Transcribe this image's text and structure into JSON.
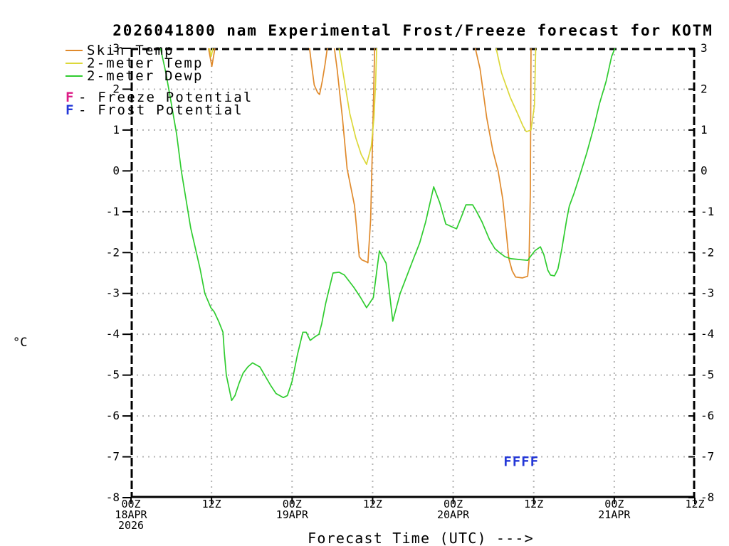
{
  "chart_data": {
    "type": "line",
    "title": "2026041800 nam Experimental Frost/Freeze forecast for KOTM",
    "xlabel": "Forecast Time (UTC) --->",
    "ylabel": "°C",
    "x_axis": {
      "unit": "forecast hour from 00Z 18APR 2026",
      "range": [
        0,
        84
      ],
      "gridline_every_hours": 12,
      "ticks": [
        {
          "hour": 0,
          "labels": [
            "00Z",
            "18APR",
            "2026"
          ]
        },
        {
          "hour": 12,
          "labels": [
            "12Z"
          ]
        },
        {
          "hour": 24,
          "labels": [
            "00Z",
            "19APR"
          ]
        },
        {
          "hour": 36,
          "labels": [
            "12Z"
          ]
        },
        {
          "hour": 48,
          "labels": [
            "00Z",
            "20APR"
          ]
        },
        {
          "hour": 60,
          "labels": [
            "12Z"
          ]
        },
        {
          "hour": 72,
          "labels": [
            "00Z",
            "21APR"
          ]
        },
        {
          "hour": 84,
          "labels": [
            "12Z"
          ]
        }
      ]
    },
    "y_axis": {
      "range": [
        -8,
        3
      ],
      "ticks": [
        3,
        2,
        1,
        0,
        -1,
        -2,
        -3,
        -4,
        -5,
        -6,
        -7,
        -8
      ]
    },
    "series": [
      {
        "name": "Skin Temp",
        "color": "#E08A2C",
        "segments": [
          [
            [
              11.55,
              3.0
            ],
            [
              12.05,
              2.56
            ],
            [
              12.5,
              3.0
            ]
          ],
          [
            [
              26.6,
              3.0
            ],
            [
              26.9,
              2.6
            ],
            [
              27.3,
              2.1
            ],
            [
              27.8,
              1.92
            ],
            [
              28.1,
              1.87
            ],
            [
              28.5,
              2.2
            ],
            [
              28.9,
              2.6
            ],
            [
              29.2,
              2.95
            ],
            [
              29.3,
              3.0
            ]
          ],
          [
            [
              30.3,
              3.0
            ],
            [
              30.7,
              2.5
            ],
            [
              31.1,
              1.9
            ],
            [
              31.5,
              1.3
            ],
            [
              32.2,
              0.05
            ],
            [
              33.3,
              -0.85
            ],
            [
              34.0,
              -2.1
            ],
            [
              34.4,
              -2.18
            ],
            [
              35.0,
              -2.22
            ],
            [
              35.3,
              -2.25
            ],
            [
              35.7,
              -1.2
            ],
            [
              36.0,
              0.8
            ],
            [
              36.3,
              3.0
            ]
          ],
          [
            [
              51.3,
              3.0
            ],
            [
              52.0,
              2.5
            ],
            [
              52.5,
              1.9
            ],
            [
              53.0,
              1.3
            ],
            [
              53.9,
              0.5
            ],
            [
              54.7,
              0.0
            ],
            [
              55.4,
              -0.7
            ],
            [
              55.9,
              -1.5
            ],
            [
              56.3,
              -2.15
            ],
            [
              56.8,
              -2.45
            ],
            [
              57.3,
              -2.6
            ],
            [
              58.3,
              -2.62
            ],
            [
              59.1,
              -2.58
            ],
            [
              59.3,
              -2.2
            ],
            [
              59.5,
              -0.5
            ],
            [
              59.6,
              3.0
            ]
          ]
        ]
      },
      {
        "name": "2-meter Temp",
        "color": "#DCD83A",
        "segments": [
          [
            [
              11.7,
              3.0
            ],
            [
              11.95,
              2.8
            ],
            [
              12.2,
              3.0
            ]
          ],
          [
            [
              31.0,
              3.0
            ],
            [
              31.8,
              2.2
            ],
            [
              32.6,
              1.4
            ],
            [
              33.5,
              0.8
            ],
            [
              34.3,
              0.4
            ],
            [
              35.1,
              0.16
            ],
            [
              35.8,
              0.6
            ],
            [
              36.2,
              1.3
            ],
            [
              36.45,
              2.2
            ],
            [
              36.6,
              3.0
            ]
          ],
          [
            [
              54.4,
              3.0
            ],
            [
              55.2,
              2.4
            ],
            [
              56.5,
              1.8
            ],
            [
              57.6,
              1.4
            ],
            [
              58.4,
              1.1
            ],
            [
              58.9,
              0.96
            ],
            [
              59.6,
              1.0
            ],
            [
              60.1,
              1.6
            ],
            [
              60.3,
              3.0
            ]
          ]
        ]
      },
      {
        "name": "2-meter Dewp",
        "color": "#2FCC2F",
        "segments": [
          [
            [
              4.4,
              3.0
            ],
            [
              5.2,
              2.4
            ],
            [
              5.9,
              1.75
            ],
            [
              6.8,
              0.9
            ],
            [
              7.5,
              0.0
            ],
            [
              8.2,
              -0.7
            ],
            [
              8.9,
              -1.4
            ],
            [
              9.6,
              -1.9
            ],
            [
              10.3,
              -2.4
            ],
            [
              11.0,
              -3.0
            ],
            [
              11.9,
              -3.35
            ],
            [
              12.4,
              -3.45
            ],
            [
              13.1,
              -3.7
            ],
            [
              13.7,
              -3.95
            ],
            [
              13.9,
              -4.45
            ],
            [
              14.2,
              -5.0
            ],
            [
              15.0,
              -5.62
            ],
            [
              15.5,
              -5.5
            ],
            [
              16.1,
              -5.2
            ],
            [
              16.7,
              -4.95
            ],
            [
              17.4,
              -4.8
            ],
            [
              18.1,
              -4.7
            ],
            [
              19.2,
              -4.8
            ],
            [
              20.8,
              -5.25
            ],
            [
              21.6,
              -5.45
            ],
            [
              22.7,
              -5.55
            ],
            [
              23.3,
              -5.5
            ],
            [
              24.0,
              -5.15
            ],
            [
              24.8,
              -4.5
            ],
            [
              25.6,
              -3.95
            ],
            [
              26.1,
              -3.95
            ],
            [
              26.7,
              -4.15
            ],
            [
              27.5,
              -4.05
            ],
            [
              28.0,
              -4.0
            ],
            [
              28.4,
              -3.75
            ],
            [
              29.0,
              -3.25
            ],
            [
              30.1,
              -2.5
            ],
            [
              31.0,
              -2.48
            ],
            [
              31.8,
              -2.55
            ],
            [
              33.2,
              -2.85
            ],
            [
              34.2,
              -3.1
            ],
            [
              35.1,
              -3.35
            ],
            [
              36.1,
              -3.1
            ],
            [
              37.0,
              -1.96
            ],
            [
              38.0,
              -2.26
            ],
            [
              39.0,
              -3.68
            ],
            [
              40.1,
              -3.0
            ],
            [
              42.2,
              -2.1
            ],
            [
              43.0,
              -1.77
            ],
            [
              43.9,
              -1.25
            ],
            [
              45.1,
              -0.39
            ],
            [
              46.0,
              -0.78
            ],
            [
              46.9,
              -1.3
            ],
            [
              48.5,
              -1.42
            ],
            [
              49.4,
              -1.05
            ],
            [
              49.9,
              -0.83
            ],
            [
              50.9,
              -0.83
            ],
            [
              51.5,
              -1.0
            ],
            [
              52.3,
              -1.25
            ],
            [
              53.4,
              -1.68
            ],
            [
              54.2,
              -1.9
            ],
            [
              54.9,
              -2.0
            ],
            [
              55.7,
              -2.1
            ],
            [
              56.6,
              -2.15
            ],
            [
              57.8,
              -2.17
            ],
            [
              59.1,
              -2.19
            ],
            [
              59.5,
              -2.1
            ],
            [
              60.2,
              -1.95
            ],
            [
              61.0,
              -1.86
            ],
            [
              61.5,
              -2.05
            ],
            [
              62.1,
              -2.43
            ],
            [
              62.5,
              -2.55
            ],
            [
              63.1,
              -2.57
            ],
            [
              63.6,
              -2.4
            ],
            [
              64.2,
              -1.9
            ],
            [
              64.9,
              -1.2
            ],
            [
              65.3,
              -0.86
            ],
            [
              66.0,
              -0.55
            ],
            [
              66.6,
              -0.25
            ],
            [
              67.9,
              0.44
            ],
            [
              69.0,
              1.1
            ],
            [
              69.8,
              1.65
            ],
            [
              70.8,
              2.2
            ],
            [
              71.6,
              2.8
            ],
            [
              72.1,
              3.0
            ]
          ]
        ]
      }
    ],
    "markers": [
      {
        "text": "FFFF",
        "meaning": "Frost Potential",
        "color": "#2438D8",
        "hour": 55.5,
        "value": -7.1
      }
    ],
    "legend": {
      "line_items": [
        {
          "label": "Skin Temp",
          "color": "#E08A2C"
        },
        {
          "label": "2-meter Temp",
          "color": "#DCD83A"
        },
        {
          "label": "2-meter Dewp",
          "color": "#2FCC2F"
        }
      ],
      "marker_items": [
        {
          "symbol": "F",
          "color": "#DD1C86",
          "label": "- Freeze Potential"
        },
        {
          "symbol": "F",
          "color": "#2438D8",
          "label": "- Frost Potential"
        }
      ]
    },
    "colors": {
      "grid": "#B3B3B3",
      "axis": "#000000",
      "background": "#FFFFFF"
    },
    "layout_hints": {
      "grid": true,
      "legend_position": "top-left",
      "axis_labels_both_sides": true
    }
  }
}
